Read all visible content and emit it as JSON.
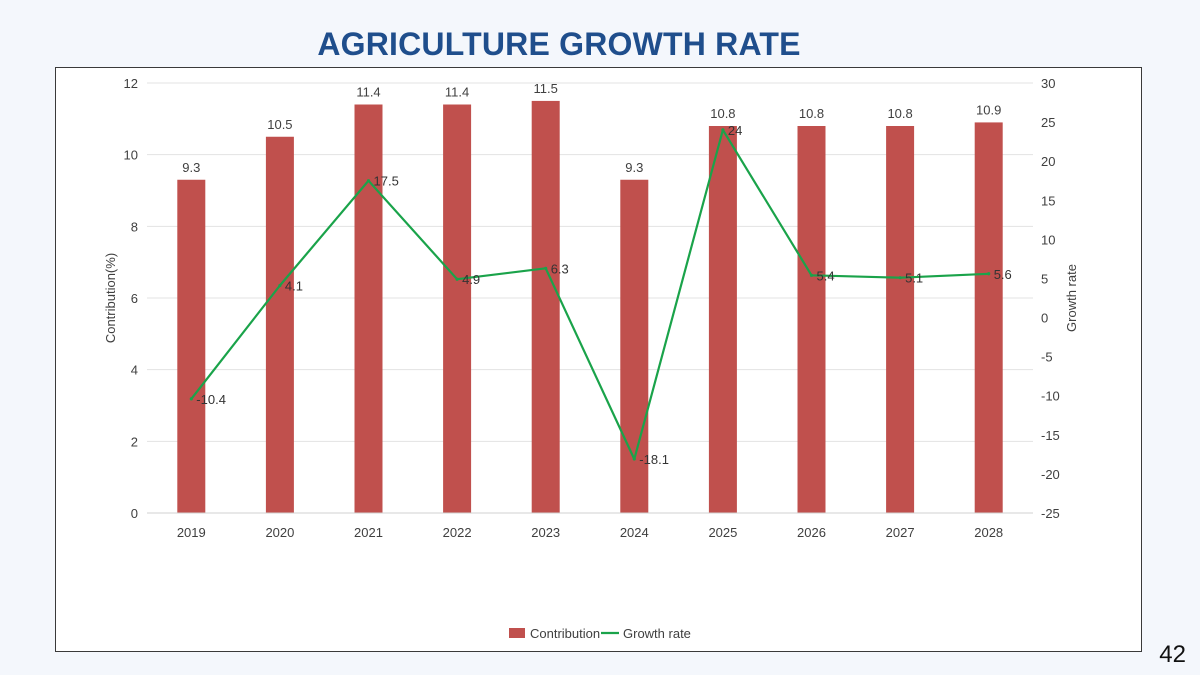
{
  "slide": {
    "title": "AGRICULTURE GROWTH RATE",
    "page_number": "42"
  },
  "colors": {
    "title": "#1f4e8c",
    "bar": "#c0504d",
    "line": "#1aa34a",
    "grid": "#e3e3e3",
    "text": "#404040"
  },
  "chart_data": {
    "type": "bar",
    "title": "",
    "categories": [
      "2019",
      "2020",
      "2021",
      "2022",
      "2023",
      "2024",
      "2025",
      "2026",
      "2027",
      "2028"
    ],
    "series": [
      {
        "name": "Contribution",
        "type": "bar",
        "axis": "left",
        "values": [
          9.3,
          10.5,
          11.4,
          11.4,
          11.5,
          9.3,
          10.8,
          10.8,
          10.8,
          10.9
        ],
        "labels": [
          "9.3",
          "10.5",
          "11.4",
          "11.4",
          "11.5",
          "9.3",
          "10.8",
          "10.8",
          "10.8",
          "10.9"
        ]
      },
      {
        "name": "Growth rate",
        "type": "line",
        "axis": "right",
        "values": [
          -10.4,
          4.1,
          17.5,
          4.9,
          6.3,
          -18.1,
          24,
          5.4,
          5.1,
          5.6
        ],
        "labels": [
          "-10.4",
          "4.1",
          "17.5",
          "4.9",
          "6.3",
          "-18.1",
          "24",
          "5.4",
          "5.1",
          "5.6"
        ]
      }
    ],
    "ylabel": "Contribution(%)",
    "y2label": "Growth rate",
    "ylim": [
      0,
      12
    ],
    "yticks": [
      0,
      2,
      4,
      6,
      8,
      10,
      12
    ],
    "ytick_labels": [
      "0",
      "2",
      "4",
      "6",
      "8",
      "10",
      "12"
    ],
    "y2lim": [
      -25,
      30
    ],
    "y2ticks": [
      -25,
      -20,
      -15,
      -10,
      -5,
      0,
      5,
      10,
      15,
      20,
      25,
      30
    ],
    "y2tick_labels": [
      "-25",
      "-20",
      "-15",
      "-10",
      "-5",
      "0",
      "5",
      "10",
      "15",
      "20",
      "25",
      "30"
    ],
    "grid": true,
    "legend_position": "bottom-center"
  }
}
